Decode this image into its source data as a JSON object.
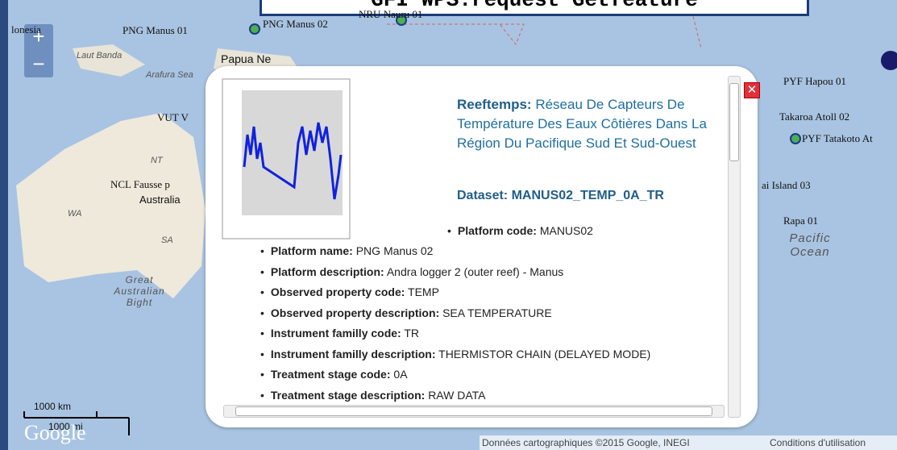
{
  "header": {
    "title": "GFI WPS:request Getfeature"
  },
  "map": {
    "labels": [
      "lonesia",
      "PNG Manus 01",
      "PNG Manus 02",
      "NRU Nauru 01",
      "Laut Banda",
      "Papua Ne",
      "Arafura Sea",
      "VUT V",
      "NT",
      "NCL Fausse p",
      "Australia",
      "WA",
      "SA",
      "Great Australian Bight",
      "PYF Hapou 01",
      "Takaroa Atoll 02",
      "PYF Tatakoto At",
      "ai Island 03",
      "Rapa 01",
      "Pacific Ocean"
    ],
    "scale": [
      "1000 km",
      "1000 mi"
    ],
    "logo": "Google",
    "attribution": "Données cartographiques ©2015 Google, INEGI",
    "terms": "Conditions d'utilisation"
  },
  "popup": {
    "source": "Reeftemps:",
    "description": "Réseau De Capteurs De Température Des Eaux Côtières Dans La Région Du Pacifique Sud Et Sud-Ouest",
    "dataset": "Dataset: MANUS02_TEMP_0A_TR",
    "items": [
      {
        "label": "Platform code:",
        "value": "MANUS02"
      },
      {
        "label": "Platform name:",
        "value": "PNG Manus 02"
      },
      {
        "label": "Platform description:",
        "value": "Andra logger 2 (outer reef) - Manus"
      },
      {
        "label": "Observed property code:",
        "value": "TEMP"
      },
      {
        "label": "Observed property description:",
        "value": "SEA TEMPERATURE"
      },
      {
        "label": "Instrument familly code:",
        "value": "TR"
      },
      {
        "label": "Instrument familly description:",
        "value": "THERMISTOR CHAIN (DELAYED MODE)"
      },
      {
        "label": "Treatment stage code:",
        "value": "0A"
      },
      {
        "label": "Treatment stage description:",
        "value": "RAW DATA"
      }
    ]
  }
}
